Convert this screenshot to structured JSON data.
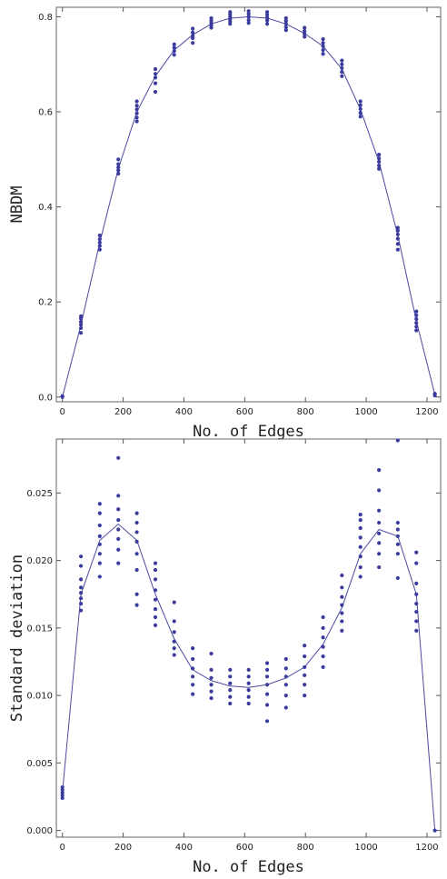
{
  "chart_data": [
    {
      "type": "scatter",
      "title": "",
      "xlabel": "No. of Edges",
      "ylabel": "NBDM",
      "xlim": [
        -20,
        1245
      ],
      "ylim": [
        -0.01,
        0.82
      ],
      "xticks": [
        0,
        200,
        400,
        600,
        800,
        1000,
        1200
      ],
      "yticks": [
        0.0,
        0.2,
        0.4,
        0.6,
        0.8
      ],
      "ytick_labels": [
        "0.0",
        "0.2",
        "0.4",
        "0.6",
        "0.8"
      ],
      "series": [
        {
          "kind": "line",
          "x": [
            0,
            61,
            123,
            184,
            245,
            306,
            368,
            429,
            490,
            552,
            613,
            674,
            736,
            797,
            858,
            920,
            981,
            1042,
            1104,
            1165,
            1226
          ],
          "values": [
            0.0,
            0.152,
            0.325,
            0.48,
            0.6,
            0.675,
            0.73,
            0.762,
            0.785,
            0.797,
            0.8,
            0.797,
            0.785,
            0.765,
            0.738,
            0.69,
            0.605,
            0.495,
            0.34,
            0.16,
            0.005
          ]
        },
        {
          "kind": "points",
          "x": [
            0,
            0,
            61,
            61,
            61,
            61,
            61,
            61,
            123,
            123,
            123,
            123,
            123,
            184,
            184,
            184,
            184,
            184,
            245,
            245,
            245,
            245,
            245,
            245,
            306,
            306,
            306,
            306,
            306,
            368,
            368,
            368,
            368,
            429,
            429,
            429,
            429,
            429,
            490,
            490,
            490,
            490,
            490,
            552,
            552,
            552,
            552,
            552,
            552,
            613,
            613,
            613,
            613,
            613,
            674,
            674,
            674,
            674,
            674,
            736,
            736,
            736,
            736,
            736,
            797,
            797,
            797,
            797,
            858,
            858,
            858,
            858,
            858,
            920,
            920,
            920,
            920,
            920,
            981,
            981,
            981,
            981,
            981,
            1042,
            1042,
            1042,
            1042,
            1042,
            1104,
            1104,
            1104,
            1104,
            1104,
            1104,
            1165,
            1165,
            1165,
            1165,
            1165,
            1165,
            1226,
            1226
          ],
          "values": [
            0.0,
            0.002,
            0.135,
            0.145,
            0.152,
            0.158,
            0.165,
            0.17,
            0.31,
            0.318,
            0.325,
            0.332,
            0.34,
            0.47,
            0.477,
            0.483,
            0.49,
            0.5,
            0.58,
            0.588,
            0.597,
            0.605,
            0.613,
            0.622,
            0.642,
            0.66,
            0.672,
            0.68,
            0.69,
            0.72,
            0.728,
            0.735,
            0.742,
            0.745,
            0.755,
            0.76,
            0.767,
            0.775,
            0.777,
            0.782,
            0.787,
            0.792,
            0.797,
            0.785,
            0.79,
            0.795,
            0.8,
            0.805,
            0.81,
            0.787,
            0.793,
            0.8,
            0.806,
            0.812,
            0.785,
            0.792,
            0.798,
            0.804,
            0.81,
            0.772,
            0.778,
            0.785,
            0.791,
            0.797,
            0.758,
            0.764,
            0.77,
            0.777,
            0.722,
            0.73,
            0.738,
            0.745,
            0.753,
            0.675,
            0.684,
            0.692,
            0.7,
            0.708,
            0.59,
            0.598,
            0.606,
            0.614,
            0.622,
            0.48,
            0.487,
            0.495,
            0.502,
            0.51,
            0.31,
            0.322,
            0.333,
            0.342,
            0.35,
            0.356,
            0.14,
            0.148,
            0.156,
            0.164,
            0.172,
            0.18,
            0.003,
            0.007
          ]
        }
      ]
    },
    {
      "type": "scatter",
      "title": "",
      "xlabel": "No. of Edges",
      "ylabel": "Standard deviation",
      "xlim": [
        -20,
        1245
      ],
      "ylim": [
        -0.0005,
        0.029
      ],
      "xticks": [
        0,
        200,
        400,
        600,
        800,
        1000,
        1200
      ],
      "yticks": [
        0.0,
        0.005,
        0.01,
        0.015,
        0.02,
        0.025
      ],
      "ytick_labels": [
        "0.000",
        "0.005",
        "0.010",
        "0.015",
        "0.020",
        "0.025"
      ],
      "series": [
        {
          "kind": "line",
          "x": [
            0,
            61,
            123,
            184,
            245,
            306,
            368,
            429,
            490,
            552,
            613,
            674,
            736,
            797,
            858,
            920,
            981,
            1042,
            1104,
            1165,
            1226
          ],
          "values": [
            0.0028,
            0.0175,
            0.0215,
            0.0227,
            0.0215,
            0.0175,
            0.0142,
            0.0119,
            0.0111,
            0.0107,
            0.0106,
            0.0108,
            0.0113,
            0.0121,
            0.0138,
            0.0165,
            0.0205,
            0.0223,
            0.0218,
            0.0175,
            0.0
          ]
        },
        {
          "kind": "points",
          "x": [
            0,
            0,
            0,
            0,
            0,
            61,
            61,
            61,
            61,
            61,
            61,
            61,
            61,
            123,
            123,
            123,
            123,
            123,
            123,
            123,
            123,
            184,
            184,
            184,
            184,
            184,
            184,
            184,
            184,
            245,
            245,
            245,
            245,
            245,
            245,
            245,
            245,
            306,
            306,
            306,
            306,
            306,
            306,
            306,
            306,
            368,
            368,
            368,
            368,
            368,
            368,
            429,
            429,
            429,
            429,
            429,
            429,
            490,
            490,
            490,
            490,
            490,
            490,
            552,
            552,
            552,
            552,
            552,
            552,
            613,
            613,
            613,
            613,
            613,
            613,
            674,
            674,
            674,
            674,
            674,
            674,
            674,
            736,
            736,
            736,
            736,
            736,
            736,
            797,
            797,
            797,
            797,
            797,
            797,
            858,
            858,
            858,
            858,
            858,
            858,
            920,
            920,
            920,
            920,
            920,
            920,
            920,
            981,
            981,
            981,
            981,
            981,
            981,
            981,
            981,
            1042,
            1042,
            1042,
            1042,
            1042,
            1042,
            1042,
            1042,
            1104,
            1104,
            1104,
            1104,
            1104,
            1104,
            1104,
            1165,
            1165,
            1165,
            1165,
            1165,
            1165,
            1165,
            1165,
            1226
          ],
          "values": [
            0.0024,
            0.0026,
            0.0028,
            0.003,
            0.0032,
            0.0163,
            0.0168,
            0.0172,
            0.0176,
            0.018,
            0.0186,
            0.0196,
            0.0203,
            0.0188,
            0.0198,
            0.0205,
            0.0212,
            0.0218,
            0.0226,
            0.0235,
            0.0242,
            0.0198,
            0.0208,
            0.0216,
            0.0223,
            0.023,
            0.0238,
            0.0248,
            0.0276,
            0.0167,
            0.0175,
            0.0193,
            0.0205,
            0.0214,
            0.0221,
            0.0228,
            0.0235,
            0.0152,
            0.0158,
            0.0164,
            0.0171,
            0.0178,
            0.0186,
            0.0193,
            0.0198,
            0.013,
            0.0135,
            0.014,
            0.0147,
            0.0155,
            0.0169,
            0.0101,
            0.0108,
            0.0114,
            0.012,
            0.0127,
            0.0135,
            0.0098,
            0.0103,
            0.0108,
            0.0113,
            0.0119,
            0.0131,
            0.0094,
            0.0099,
            0.0104,
            0.0109,
            0.0114,
            0.0119,
            0.0094,
            0.0099,
            0.0104,
            0.0109,
            0.0114,
            0.0119,
            0.0081,
            0.0093,
            0.0101,
            0.0108,
            0.0114,
            0.0119,
            0.0124,
            0.0091,
            0.01,
            0.0108,
            0.0114,
            0.012,
            0.0127,
            0.01,
            0.0108,
            0.0115,
            0.0121,
            0.0129,
            0.0137,
            0.0121,
            0.0129,
            0.0136,
            0.0143,
            0.015,
            0.0158,
            0.0148,
            0.0155,
            0.0161,
            0.0167,
            0.0173,
            0.018,
            0.0189,
            0.0188,
            0.0195,
            0.0203,
            0.021,
            0.0217,
            0.0224,
            0.023,
            0.0234,
            0.0195,
            0.0205,
            0.0213,
            0.022,
            0.0228,
            0.0237,
            0.0252,
            0.0267,
            0.0187,
            0.0205,
            0.0212,
            0.0218,
            0.0223,
            0.0228,
            0.0289,
            0.0148,
            0.0155,
            0.0162,
            0.0168,
            0.0175,
            0.0183,
            0.0198,
            0.0206,
            0.0
          ]
        }
      ]
    }
  ]
}
